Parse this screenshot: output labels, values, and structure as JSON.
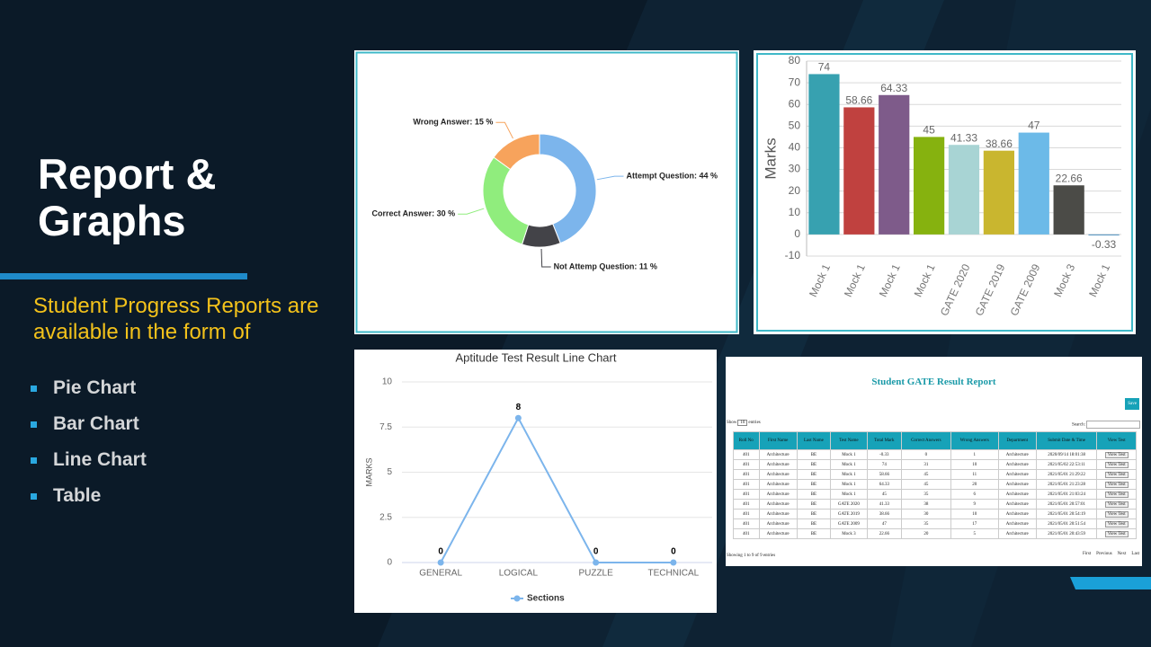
{
  "slide": {
    "title": "Report & Graphs",
    "subtitle": "Student Progress Reports are available in the form of",
    "bullets": [
      "Pie Chart",
      "Bar Chart",
      "Line Chart",
      "Table"
    ]
  },
  "chart_data": [
    {
      "type": "pie",
      "donut": true,
      "categories": [
        "Attempt Question",
        "Not Attemp Question",
        "Correct Answer",
        "Wrong Answer"
      ],
      "values": [
        44,
        11,
        30,
        15
      ],
      "value_labels": [
        "Attempt Question: 44 %",
        "Not Attemp Question: 11 %",
        "Correct Answer: 30 %",
        "Wrong Answer: 15 %"
      ],
      "colors": [
        "#7cb5ec",
        "#434348",
        "#90ed7d",
        "#f7a35c"
      ]
    },
    {
      "type": "bar",
      "ylabel": "Marks",
      "categories": [
        "Mock 1",
        "Mock 1",
        "Mock 1",
        "Mock 1",
        "GATE 2020",
        "GATE 2019",
        "GATE 2009",
        "Mock 3",
        "Mock 1"
      ],
      "values": [
        74,
        58.66,
        64.33,
        45,
        41.33,
        38.66,
        47,
        22.66,
        -0.33
      ],
      "colors": [
        "#37a1b0",
        "#c0413f",
        "#7e5b8a",
        "#86b20f",
        "#a8d4d4",
        "#c9b62f",
        "#6cbae8",
        "#4b4b47",
        "#4a8fbd"
      ],
      "ylim": [
        -10,
        80
      ],
      "yticks": [
        -10,
        0,
        10,
        20,
        30,
        40,
        50,
        60,
        70,
        80
      ],
      "grid": true
    },
    {
      "type": "line",
      "title": "Aptitude Test Result Line Chart",
      "ylabel": "MARKS",
      "categories": [
        "GENERAL",
        "LOGICAL",
        "PUZZLE",
        "TECHNICAL"
      ],
      "series": [
        {
          "name": "Sections",
          "color": "#7cb5ec",
          "values": [
            0,
            8,
            0,
            0
          ]
        }
      ],
      "ylim": [
        0,
        10
      ],
      "yticks": [
        0,
        2.5,
        5,
        7.5,
        10
      ],
      "grid": true,
      "legend": "bottom"
    }
  ],
  "table": {
    "title": "Student GATE Result Report",
    "save": "Save",
    "show": "Show",
    "length": "10",
    "entries": "entries",
    "search": "Search:",
    "headers": [
      "Roll No",
      "First Name",
      "Last Name",
      "Test Name",
      "Total Mark",
      "Correct Answers",
      "Wrong Answers",
      "Department",
      "Submit Date & Time",
      "View Test"
    ],
    "rows": [
      [
        "401",
        "Architecture",
        "BE",
        "Mock 1",
        "-0.33",
        "0",
        "1",
        "Architecture",
        "2020/09/14 18:01:38",
        "View Test"
      ],
      [
        "401",
        "Architecture",
        "BE",
        "Mock 1",
        "74",
        "31",
        "10",
        "Architecture",
        "2021/05/02 22:53:11",
        "View Test"
      ],
      [
        "401",
        "Architecture",
        "BE",
        "Mock 1",
        "58.66",
        "45",
        "11",
        "Architecture",
        "2021/05/01 21:29:22",
        "View Test"
      ],
      [
        "401",
        "Architecture",
        "BE",
        "Mock 1",
        "64.33",
        "45",
        "20",
        "Architecture",
        "2021/05/01 21:23:28",
        "View Test"
      ],
      [
        "401",
        "Architecture",
        "BE",
        "Mock 1",
        "45",
        "35",
        "6",
        "Architecture",
        "2021/05/01 21:03:24",
        "View Test"
      ],
      [
        "401",
        "Architecture",
        "BE",
        "GATE 2020",
        "41.33",
        "38",
        "9",
        "Architecture",
        "2021/05/01 20:57:01",
        "View Test"
      ],
      [
        "401",
        "Architecture",
        "BE",
        "GATE 2019",
        "38.66",
        "30",
        "10",
        "Architecture",
        "2021/05/01 20:54:19",
        "View Test"
      ],
      [
        "401",
        "Architecture",
        "BE",
        "GATE 2009",
        "47",
        "35",
        "17",
        "Architecture",
        "2021/05/01 20:51:54",
        "View Test"
      ],
      [
        "401",
        "Architecture",
        "BE",
        "Mock 3",
        "22.66",
        "20",
        "5",
        "Architecture",
        "2021/05/01 20:43:59",
        "View Test"
      ]
    ],
    "info": "Showing 1 to 9 of 9 entries",
    "pager": [
      "First",
      "Previous",
      "Next",
      "Last"
    ]
  }
}
